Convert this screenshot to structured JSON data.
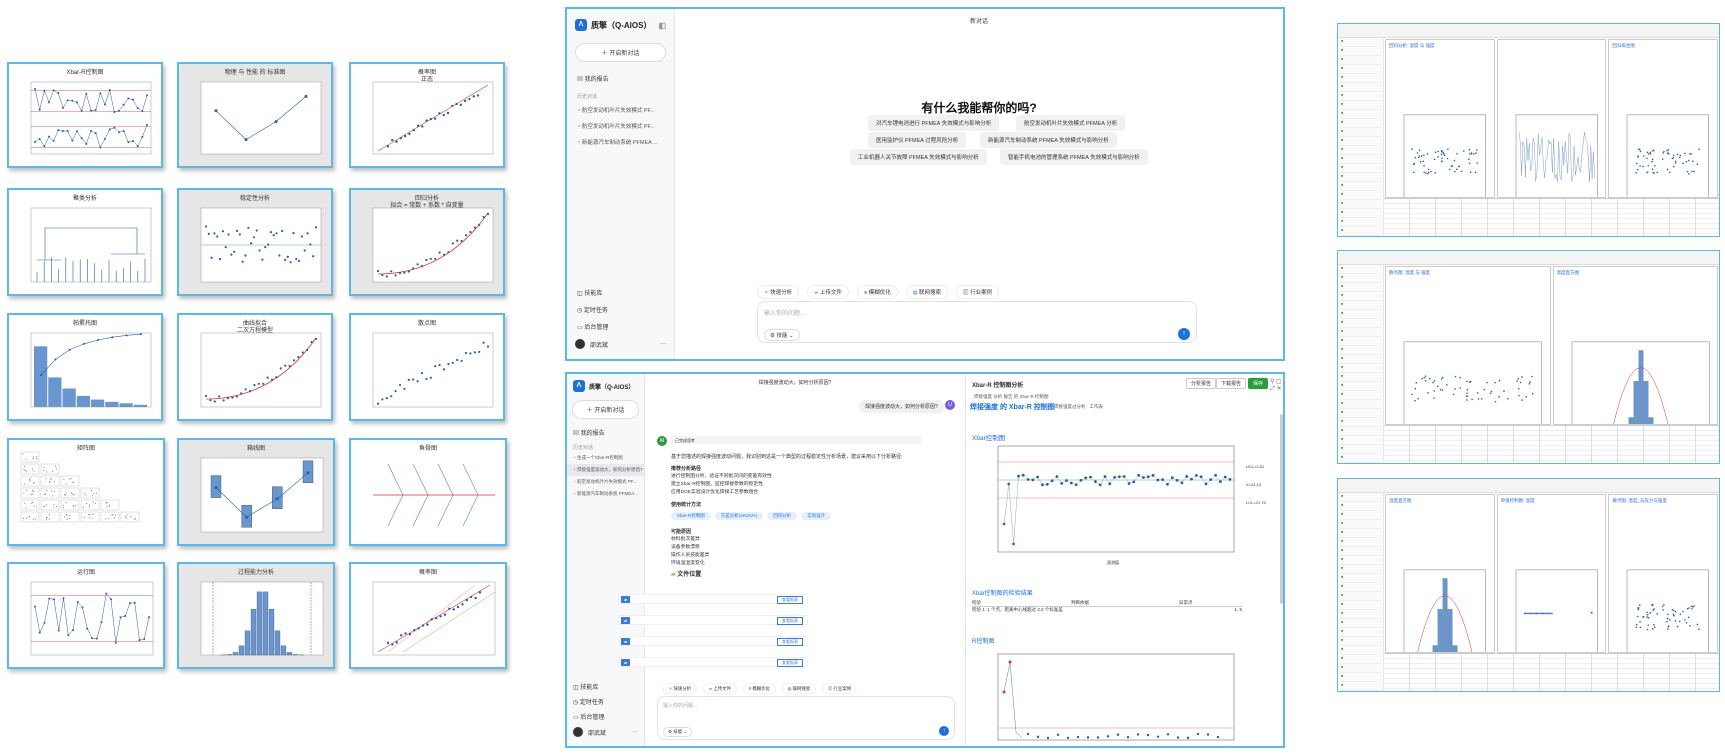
{
  "thumbnails": [
    {
      "title": "Xbar-R控制图"
    },
    {
      "title": "物理 与 性能 的 标准图"
    },
    {
      "title": "概率图",
      "subtitle": "正态"
    },
    {
      "title": "聚类分析"
    },
    {
      "title": "稳定性分析"
    },
    {
      "title": "回归分析",
      "subtitle": "拟合 = 常数 + 系数 * 自变量"
    },
    {
      "title": "帕累托图"
    },
    {
      "title": "曲线拟合",
      "subtitle": "二次方程模型"
    },
    {
      "title": "散点图"
    },
    {
      "title": "矩阵图"
    },
    {
      "title": "箱线图"
    },
    {
      "title": "鱼骨图"
    },
    {
      "title": "运行图"
    },
    {
      "title": "过程能力分析"
    },
    {
      "title": "概率图"
    }
  ],
  "top_app": {
    "brand": "质擎（Q-AIOS）",
    "new_chat": "开启新对话",
    "my_reports": "我的报告",
    "history_label": "历史对话",
    "history": [
      "航空发动机叶片失效模式 PF...",
      "航空发动机叶片失效模式 PF...",
      "新能源汽车制动系统 PFMEA ..."
    ],
    "header": "新对话",
    "hero": "有什么我能帮你的吗?",
    "suggestions": [
      "对汽车锂电池进行 PFMEA 失效模式与影响分析",
      "航空发动机叶片失效模式 PFMEA 分析",
      "医用监护仪 PFMEA 过程风险分析",
      "新能源汽车制动系统 PFMEA 失效模式与影响分析",
      "工业机器人关节故障 PFMEA 失效模式与影响分析",
      "智能手机电池的管理系统 PFMEA 失效模式与影响分析"
    ],
    "tools": [
      "快速分析",
      "上传文件",
      "模糊优化",
      "联网搜索",
      "行业案例"
    ],
    "input_placeholder": "输入你的问题...",
    "skill": "技能",
    "nav": [
      "技能库",
      "定时任务",
      "后台管理"
    ],
    "user": "邵武斌"
  },
  "bottom_app": {
    "brand": "质擎（Q-AIOS）",
    "new_chat": "开启新对话",
    "my_reports": "我的报告",
    "history_label": "历史对话",
    "history": [
      "生成一个Xbar-R控制图",
      "焊接强度波动大，如何分析原因?",
      "航空发动机叶片失效模式 PF...",
      "新能源汽车制动系统 PFMEA..."
    ],
    "chat_title": "焊接强度波动大，如何分析原因?",
    "user_msg": "焊接强度波动大，如何分析原因?",
    "thinking": "已完成思考",
    "answer_intro": "基于您描述的焊接强度波动问题，我识别到这是一个典型的过程稳定性分析场景，建议采用以下分析路径:",
    "recommend_title": "推荐分析路径",
    "recommend": [
      "进行控制图分析，验证不同批次间的变差有效性",
      "建立Xbar-R控制图，监控焊接参数的稳定性",
      "应用DOE实验设计优化焊接工艺参数组合"
    ],
    "tools_title": "使用统计方法",
    "method_pills": [
      "Xbar-R控制图",
      "方差分析(ANOVA)",
      "回归分析",
      "实验设计"
    ],
    "causes_title": "可能原因",
    "causes": [
      "材料批次差异",
      "设备参数漂移",
      "操作人员技能差异",
      "环境温湿度变化"
    ],
    "files_title": "文件位置",
    "file_btn": "查看报表",
    "tools": [
      "快速分析",
      "上传文件",
      "模糊优化",
      "联网搜索",
      "行业案例"
    ],
    "input_placeholder": "输入你的问题...",
    "skill": "技能",
    "nav": [
      "技能库",
      "定时任务",
      "后台管理"
    ],
    "user": "邵武斌",
    "panel_title": "Xbar-R 控制图分析",
    "panel_actions": [
      "分析报告",
      "下载报告",
      "保存"
    ],
    "breadcrumb": "焊接强度 分析 报告 的 Xbar-R 控制图",
    "report_title": "焊接强度 的 Xbar-R 控制图",
    "report_sub": "焊接强度过分析 · 工作表",
    "section_chart": "Xbar控制图",
    "section_test": "Xbar控制图的检验结果",
    "test_cols": [
      "检验",
      "",
      "判断依据",
      "异常点"
    ],
    "test_row": [
      "检验 1: 1 个点，距离中心线超过 3.0 个标准差",
      "",
      "",
      "1, 5"
    ],
    "section_r": "R控制图",
    "ucl": "UCL=2.51",
    "cl": "X=24.13",
    "lcl": "LCL=21.76",
    "xlabel": "观测值"
  },
  "right_windows": [
    {
      "panes": [
        "回归分析: 温度 与 强度",
        "",
        "回归拟合图"
      ]
    },
    {
      "panes": [
        "散点图: 温度 与 强度",
        "温度直方图"
      ]
    },
    {
      "panes": [
        "温度直方图",
        "单值控制图: 温度",
        "散点图: 温度_与压力与强度"
      ]
    }
  ],
  "colors": {
    "accent": "#1e6fd9",
    "frame": "#5bb8e8",
    "bar": "#6a96cf",
    "point": "#2a5ea8",
    "red": "#d33"
  }
}
